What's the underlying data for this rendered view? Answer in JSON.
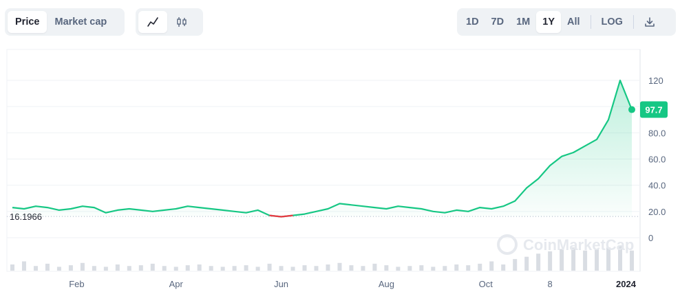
{
  "controls": {
    "metric_tabs": [
      {
        "label": "Price",
        "active": true
      },
      {
        "label": "Market cap",
        "active": false
      }
    ],
    "chart_type_icons": [
      {
        "icon": "line-chart-icon",
        "active": true
      },
      {
        "icon": "candlestick-icon",
        "active": false
      }
    ],
    "ranges": [
      {
        "label": "1D",
        "active": false
      },
      {
        "label": "7D",
        "active": false
      },
      {
        "label": "1M",
        "active": false
      },
      {
        "label": "1Y",
        "active": true
      },
      {
        "label": "All",
        "active": false
      }
    ],
    "log_label": "LOG",
    "download_icon": "download-icon"
  },
  "watermark": "CoinMarketCap",
  "colors": {
    "up": "#16c784",
    "down": "#ea3943",
    "current_badge": "#16c784",
    "grid": "#eff2f5",
    "axis_text": "#58667e",
    "volume": "#d9dde3"
  },
  "chart_data": {
    "type": "line",
    "title": "",
    "xlabel": "",
    "ylabel": "",
    "x_ticks": [
      "Feb",
      "Apr",
      "Jun",
      "Aug",
      "Oct",
      "8",
      "2024"
    ],
    "y_ticks": [
      "120",
      "100",
      "80.0",
      "60.0",
      "40.0",
      "20.0",
      "0"
    ],
    "ylim": [
      -20,
      140
    ],
    "reference_value": 16.1966,
    "reference_label": "16.1966",
    "current_value": 97.7,
    "current_label": "97.7",
    "series": [
      {
        "x": [
          "Jan 01",
          "Jan 08",
          "Jan 15",
          "Jan 22",
          "Jan 29",
          "Feb 05",
          "Feb 12",
          "Feb 19",
          "Feb 26",
          "Mar 05",
          "Mar 12",
          "Mar 19",
          "Mar 26",
          "Apr 02",
          "Apr 09",
          "Apr 16",
          "Apr 23",
          "Apr 30",
          "May 07",
          "May 14",
          "May 21",
          "May 28",
          "Jun 04",
          "Jun 11",
          "Jun 18",
          "Jun 25",
          "Jul 02",
          "Jul 09",
          "Jul 16",
          "Jul 23",
          "Jul 30",
          "Aug 06",
          "Aug 13",
          "Aug 20",
          "Aug 27",
          "Sep 03",
          "Sep 10",
          "Sep 17",
          "Sep 24",
          "Oct 01",
          "Oct 08",
          "Oct 15",
          "Oct 22",
          "Oct 29",
          "Nov 05",
          "Nov 12",
          "Nov 19",
          "Nov 26",
          "Dec 03",
          "Dec 10",
          "Dec 17",
          "Dec 24",
          "Dec 31",
          "Jan 05"
        ],
        "values": [
          23,
          22,
          24,
          23,
          21,
          22,
          24,
          23,
          19,
          21,
          22,
          21,
          20,
          21,
          22,
          24,
          23,
          22,
          21,
          20,
          19,
          21,
          17,
          16,
          17,
          18,
          20,
          22,
          26,
          25,
          24,
          23,
          22,
          24,
          23,
          22,
          20,
          19,
          21,
          20,
          23,
          22,
          24,
          28,
          38,
          45,
          55,
          62,
          65,
          70,
          75,
          90,
          120,
          97.7
        ]
      }
    ],
    "down_range": [
      "Jun 04",
      "Jun 18"
    ],
    "volume": [
      8,
      12,
      6,
      9,
      5,
      7,
      10,
      6,
      5,
      8,
      6,
      7,
      9,
      6,
      5,
      7,
      8,
      6,
      5,
      6,
      7,
      5,
      9,
      6,
      5,
      7,
      6,
      8,
      10,
      7,
      6,
      9,
      7,
      5,
      6,
      7,
      5,
      6,
      8,
      7,
      9,
      12,
      8,
      15,
      18,
      22,
      25,
      28,
      30,
      26,
      28,
      30,
      32,
      26
    ]
  }
}
